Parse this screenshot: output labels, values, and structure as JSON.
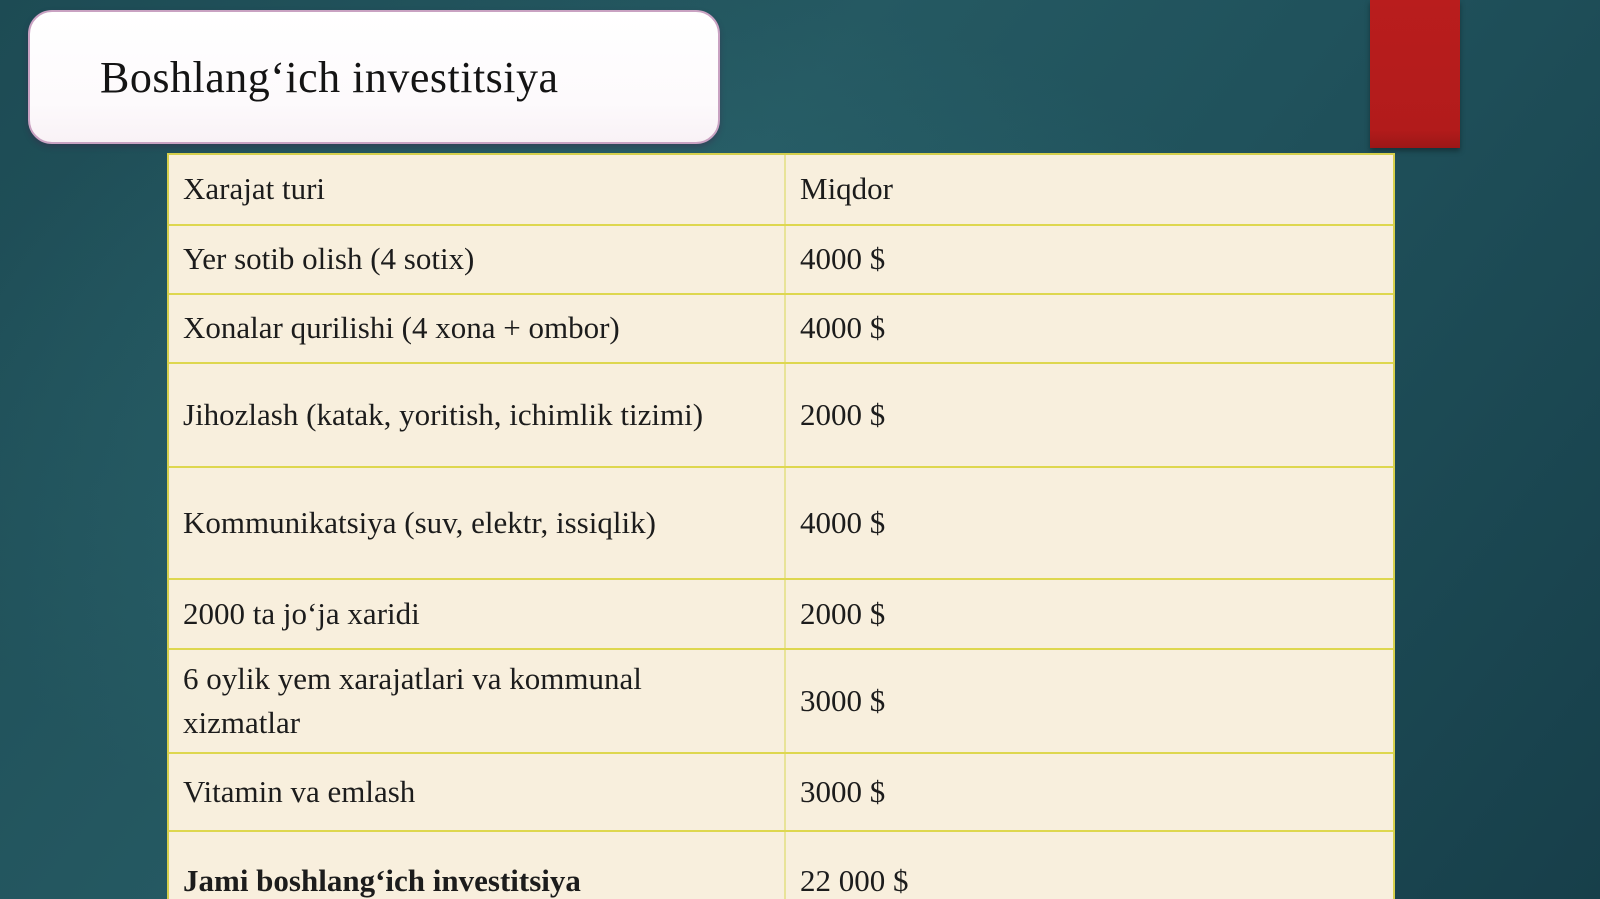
{
  "slide": {
    "title": "Boshlang‘ich investitsiya"
  },
  "table": {
    "headers": [
      "Xarajat turi",
      "Miqdor"
    ],
    "rows": [
      {
        "label": "Yer sotib olish (4 sotix)",
        "value": "4000 $"
      },
      {
        "label": "Xonalar qurilishi (4 xona + ombor)",
        "value": "4000 $"
      },
      {
        "label": "Jihozlash (katak, yoritish, ichimlik tizimi)",
        "value": "2000 $"
      },
      {
        "label": "Kommunikatsiya (suv, elektr, issiqlik)",
        "value": "4000 $"
      },
      {
        "label": "2000 ta jo‘ja xaridi",
        "value": "2000 $"
      },
      {
        "label": "6 oylik yem xarajatlari va kommunal xizmatlar",
        "value": "3000 $"
      },
      {
        "label": "Vitamin va emlash",
        "value": "3000 $"
      },
      {
        "label": "Jami boshlang‘ich investitsiya",
        "value": "22 000 $"
      }
    ]
  },
  "colors": {
    "background_teal": "#20525c",
    "accent_red": "#b71d1d",
    "table_background": "#f8efdd",
    "divider_yellow": "#ded74f",
    "title_border_pink": "#c9a2c2",
    "text": "#1c1c1c"
  }
}
